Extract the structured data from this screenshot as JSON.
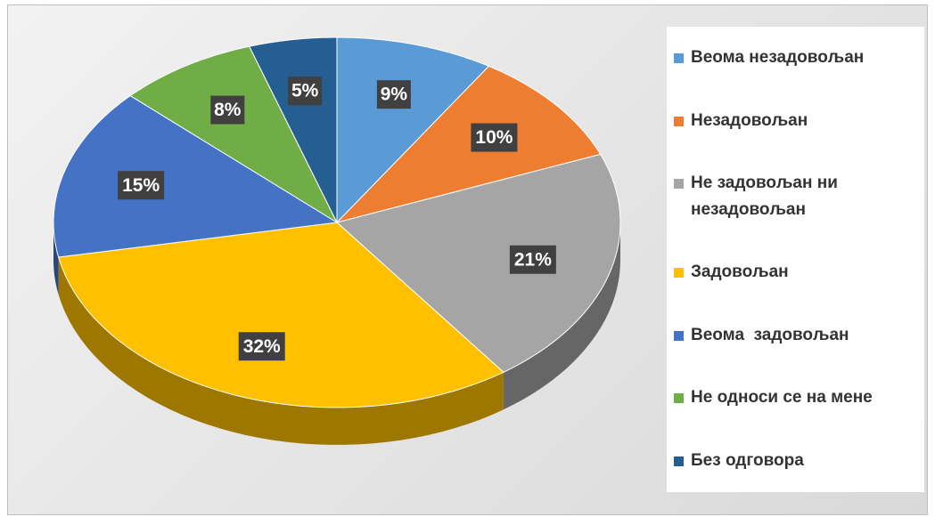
{
  "chart_data": {
    "type": "pie",
    "categories": [
      "Веома незадовољан",
      "Незадовољан",
      "Не задовољан ни незадовољан",
      "Задовољан",
      "Веома  задовољан",
      "Не односи се на мене",
      "Без одговора"
    ],
    "values": [
      9,
      10,
      21,
      32,
      15,
      8,
      5
    ],
    "value_labels": [
      "9%",
      "10%",
      "21%",
      "32%",
      "15%",
      "8%",
      "5%"
    ],
    "colors": [
      "#5b9bd5",
      "#ed7d31",
      "#a5a5a5",
      "#ffc000",
      "#4472c4",
      "#70ad47",
      "#255e91"
    ],
    "legend": "right"
  }
}
